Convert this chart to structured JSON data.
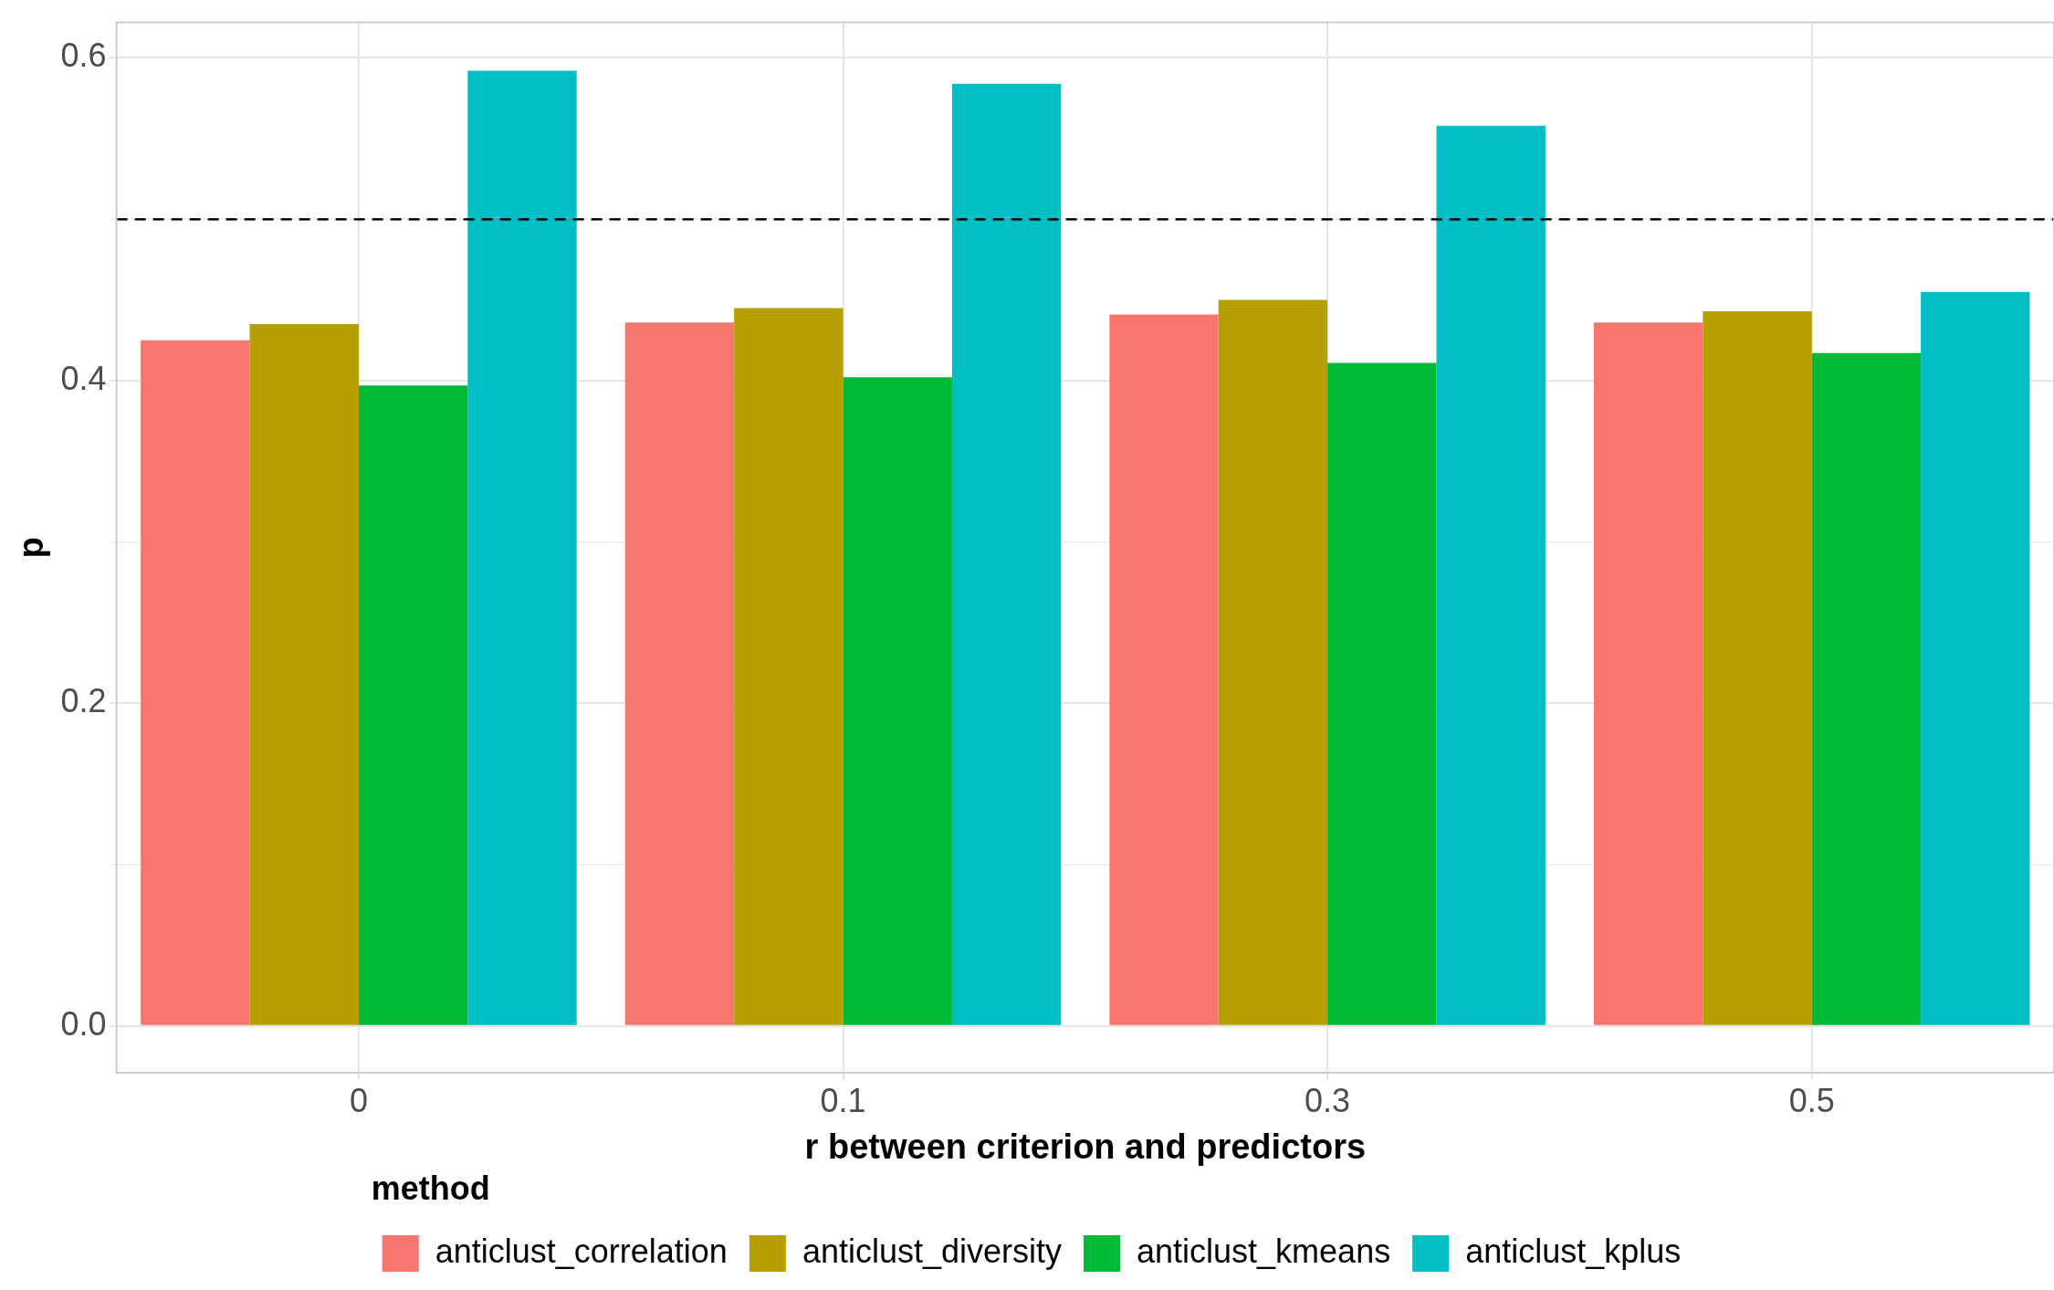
{
  "chart_data": {
    "type": "bar",
    "xlabel": "r between criterion and predictors",
    "ylabel": "p",
    "legend_title": "method",
    "categories": [
      "0",
      "0.1",
      "0.3",
      "0.5"
    ],
    "series": [
      {
        "name": "anticlust_correlation",
        "color": "#f8766d",
        "values": [
          0.425,
          0.436,
          0.441,
          0.436
        ]
      },
      {
        "name": "anticlust_diversity",
        "color": "#b79f00",
        "values": [
          0.435,
          0.445,
          0.45,
          0.443
        ]
      },
      {
        "name": "anticlust_kmeans",
        "color": "#00ba38",
        "values": [
          0.397,
          0.402,
          0.411,
          0.417
        ]
      },
      {
        "name": "anticlust_kplus",
        "color": "#00bfc4",
        "values": [
          0.592,
          0.584,
          0.558,
          0.455
        ]
      }
    ],
    "ylim": [
      -0.029,
      0.622
    ],
    "yticks": [
      {
        "value": 0,
        "label": "0.0"
      },
      {
        "value": 0.1,
        "label": null
      },
      0.2,
      {
        "value": 0.3,
        "label": null
      },
      0.4,
      {
        "value": 0.5,
        "label": null
      },
      0.6
    ],
    "ref_lines": [
      {
        "axis": "y",
        "value": 0.5,
        "line_style": "dashed",
        "color": "#000000"
      }
    ],
    "grid": true,
    "legend": "bottom"
  }
}
